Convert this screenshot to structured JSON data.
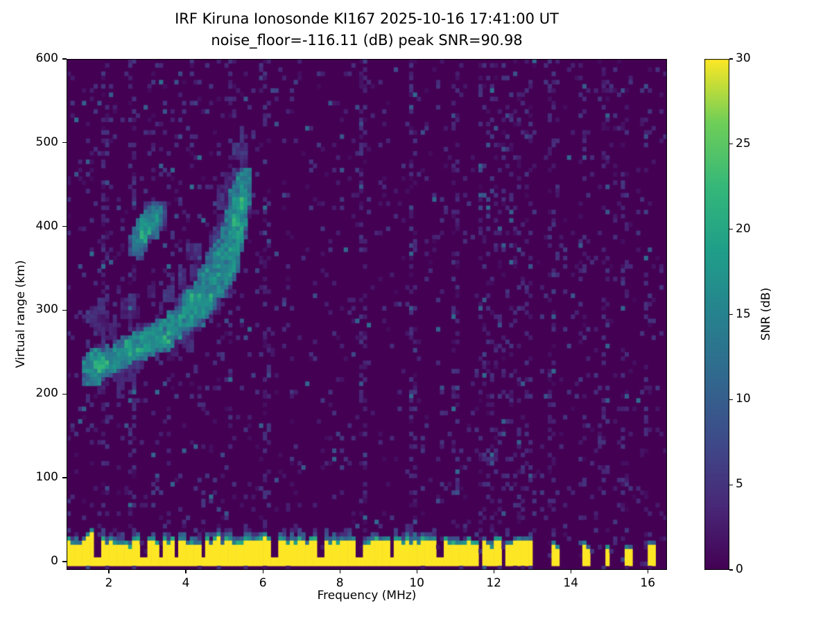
{
  "chart_data": {
    "type": "heatmap",
    "title": "IRF Kiruna Ionosonde KI167 2025-10-16 17:41:00  UT",
    "subtitle": "noise_floor=-116.11 (dB) peak SNR=90.98",
    "xlabel": "Frequency (MHz)",
    "ylabel": "Virtual range (km)",
    "x_range": [
      0.9,
      16.5
    ],
    "y_range": [
      -10,
      600
    ],
    "x_ticks": [
      2,
      4,
      6,
      8,
      10,
      12,
      14,
      16
    ],
    "y_ticks": [
      0,
      100,
      200,
      300,
      400,
      500,
      600
    ],
    "grid": false,
    "colormap": "viridis",
    "colors": {
      "background_min": "#440154",
      "peak": "#fde725",
      "figure_bg": "#ffffff",
      "text": "#000000"
    },
    "colorbar": {
      "label": "SNR (dB)",
      "range": [
        0,
        30
      ],
      "ticks": [
        0,
        5,
        10,
        15,
        20,
        25,
        30
      ],
      "position": "right"
    },
    "features": {
      "noise_floor_db": -116.11,
      "peak_snr_db": 90.98,
      "ground_clutter_band": {
        "range_km": [
          0,
          28
        ],
        "snr_db": 30,
        "continuous_up_to_mhz": 11.55,
        "note": "saturated yellow band with ragged top edge and narrow dark gaps"
      },
      "ground_gap_freqs_mhz": [
        1.7,
        2.9,
        3.35,
        3.75,
        4.45,
        6.3,
        7.5,
        8.5,
        9.35,
        10.6
      ],
      "intermittent_columns_mhz": [
        11.7,
        11.85,
        12.0,
        12.15,
        12.3,
        12.5,
        12.65,
        12.8,
        12.95,
        13.5,
        14.3,
        14.9,
        15.4,
        16.0
      ],
      "noise_column_freqs": [
        1.9,
        2.6,
        5.15,
        6.05,
        8.6,
        9.9,
        11.0
      ],
      "echo_trace_points": [
        [
          1.4,
          228
        ],
        [
          1.8,
          235
        ],
        [
          2.2,
          243
        ],
        [
          2.6,
          252
        ],
        [
          3.0,
          262
        ],
        [
          3.4,
          272
        ],
        [
          3.8,
          284
        ],
        [
          4.2,
          297
        ],
        [
          4.6,
          314
        ],
        [
          5.0,
          340
        ],
        [
          5.2,
          365
        ],
        [
          5.35,
          395
        ],
        [
          5.45,
          425
        ],
        [
          5.5,
          455
        ]
      ],
      "x_mode_trace_points": [
        [
          3.9,
          300
        ],
        [
          4.3,
          322
        ],
        [
          4.7,
          348
        ],
        [
          5.0,
          378
        ],
        [
          5.2,
          408
        ],
        [
          5.35,
          438
        ]
      ],
      "spread_patch_points": [
        [
          2.7,
          378
        ],
        [
          2.9,
          394
        ],
        [
          3.1,
          406
        ],
        [
          3.3,
          416
        ]
      ]
    }
  }
}
